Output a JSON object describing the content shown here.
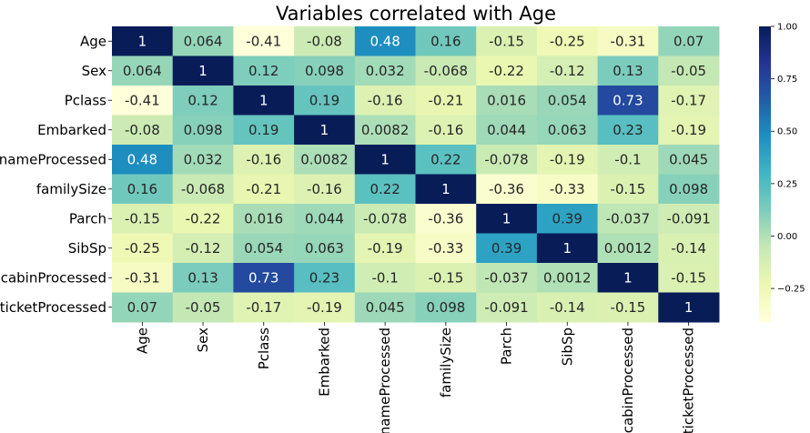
{
  "chart_data": {
    "type": "heatmap",
    "title": "Variables correlated with Age",
    "rows": [
      "Age",
      "Sex",
      "Pclass",
      "Embarked",
      "nameProcessed",
      "familySize",
      "Parch",
      "SibSp",
      "cabinProcessed",
      "ticketProcessed"
    ],
    "columns": [
      "Age",
      "Sex",
      "Pclass",
      "Embarked",
      "nameProcessed",
      "familySize",
      "Parch",
      "SibSp",
      "cabinProcessed",
      "ticketProcessed"
    ],
    "values": [
      [
        1,
        0.064,
        -0.41,
        -0.08,
        0.48,
        0.16,
        -0.15,
        -0.25,
        -0.31,
        0.07
      ],
      [
        0.064,
        1,
        0.12,
        0.098,
        0.032,
        -0.068,
        -0.22,
        -0.12,
        0.13,
        -0.05
      ],
      [
        -0.41,
        0.12,
        1,
        0.19,
        -0.16,
        -0.21,
        0.016,
        0.054,
        0.73,
        -0.17
      ],
      [
        -0.08,
        0.098,
        0.19,
        1,
        0.0082,
        -0.16,
        0.044,
        0.063,
        0.23,
        -0.19
      ],
      [
        0.48,
        0.032,
        -0.16,
        0.0082,
        1,
        0.22,
        -0.078,
        -0.19,
        -0.1,
        0.045
      ],
      [
        0.16,
        -0.068,
        -0.21,
        -0.16,
        0.22,
        1,
        -0.36,
        -0.33,
        -0.15,
        0.098
      ],
      [
        -0.15,
        -0.22,
        0.016,
        0.044,
        -0.078,
        -0.36,
        1,
        0.39,
        -0.037,
        -0.091
      ],
      [
        -0.25,
        -0.12,
        0.054,
        0.063,
        -0.19,
        -0.33,
        0.39,
        1,
        0.0012,
        -0.14
      ],
      [
        -0.31,
        0.13,
        0.73,
        0.23,
        -0.1,
        -0.15,
        -0.037,
        0.0012,
        1,
        -0.15
      ],
      [
        0.07,
        -0.05,
        -0.17,
        -0.19,
        0.045,
        0.098,
        -0.091,
        -0.14,
        -0.15,
        1
      ]
    ],
    "annotations": [
      [
        "1",
        "0.064",
        "-0.41",
        "-0.08",
        "0.48",
        "0.16",
        "-0.15",
        "-0.25",
        "-0.31",
        "0.07"
      ],
      [
        "0.064",
        "1",
        "0.12",
        "0.098",
        "0.032",
        "-0.068",
        "-0.22",
        "-0.12",
        "0.13",
        "-0.05"
      ],
      [
        "-0.41",
        "0.12",
        "1",
        "0.19",
        "-0.16",
        "-0.21",
        "0.016",
        "0.054",
        "0.73",
        "-0.17"
      ],
      [
        "-0.08",
        "0.098",
        "0.19",
        "1",
        "0.0082",
        "-0.16",
        "0.044",
        "0.063",
        "0.23",
        "-0.19"
      ],
      [
        "0.48",
        "0.032",
        "-0.16",
        "0.0082",
        "1",
        "0.22",
        "-0.078",
        "-0.19",
        "-0.1",
        "0.045"
      ],
      [
        "0.16",
        "-0.068",
        "-0.21",
        "-0.16",
        "0.22",
        "1",
        "-0.36",
        "-0.33",
        "-0.15",
        "0.098"
      ],
      [
        "-0.15",
        "-0.22",
        "0.016",
        "0.044",
        "-0.078",
        "-0.36",
        "1",
        "0.39",
        "-0.037",
        "-0.091"
      ],
      [
        "-0.25",
        "-0.12",
        "0.054",
        "0.063",
        "-0.19",
        "-0.33",
        "0.39",
        "1",
        "0.0012",
        "-0.14"
      ],
      [
        "-0.31",
        "0.13",
        "0.73",
        "0.23",
        "-0.1",
        "-0.15",
        "-0.037",
        "0.0012",
        "1",
        "-0.15"
      ],
      [
        "0.07",
        "-0.05",
        "-0.17",
        "-0.19",
        "0.045",
        "0.098",
        "-0.091",
        "-0.14",
        "-0.15",
        "1"
      ]
    ],
    "colormap": "YlGnBu",
    "colormap_stops": [
      "#ffffd9",
      "#edf8b1",
      "#c7e9b4",
      "#7fcdbb",
      "#41b6c4",
      "#1d91c0",
      "#225ea8",
      "#253494",
      "#081d58"
    ],
    "vmin": -0.41,
    "vmax": 1,
    "colorbar": {
      "ticks": [
        -0.25,
        0.0,
        0.25,
        0.5,
        0.75,
        1.0
      ],
      "tick_labels": [
        "−0.25",
        "0.00",
        "0.25",
        "0.50",
        "0.75",
        "1.00"
      ]
    },
    "text_dark": "#262626",
    "text_light": "#ffffff"
  }
}
